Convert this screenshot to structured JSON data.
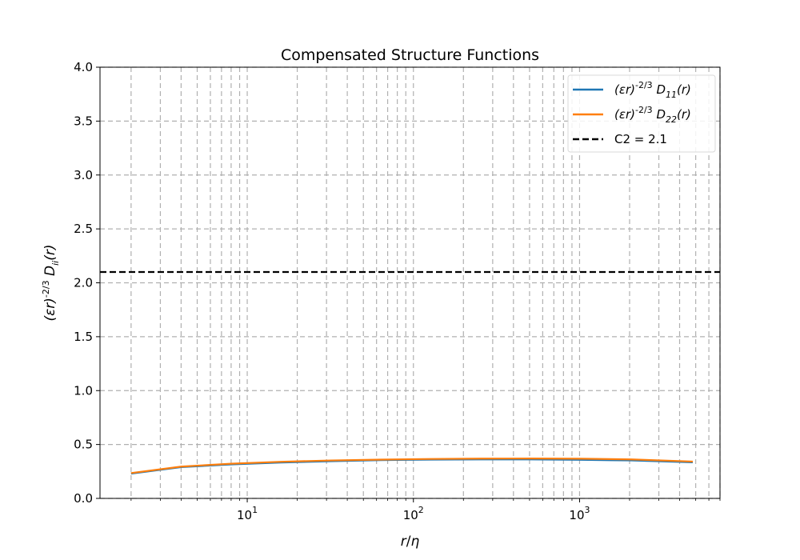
{
  "chart_data": {
    "type": "line",
    "title": "Compensated Structure Functions",
    "xlabel": "r/η",
    "ylabel": "(εr)^{-2/3} D_ii(r)",
    "xscale": "log",
    "xlim": [
      1.3,
      7000
    ],
    "ylim": [
      0.0,
      4.0
    ],
    "grid": true,
    "legend_position": "upper-right",
    "x_tick_labels": [
      "10^1",
      "10^2",
      "10^3"
    ],
    "y_tick_labels": [
      "0.0",
      "0.5",
      "1.0",
      "1.5",
      "2.0",
      "2.5",
      "3.0",
      "3.5",
      "4.0"
    ],
    "x": [
      2,
      4,
      8,
      16,
      32,
      64,
      128,
      256,
      512,
      1024,
      2048,
      4800
    ],
    "series": [
      {
        "name": "(εr)^{-2/3} D_11(r)",
        "color": "#1f77b4",
        "values": [
          0.23,
          0.29,
          0.315,
          0.333,
          0.345,
          0.355,
          0.36,
          0.362,
          0.362,
          0.358,
          0.352,
          0.335
        ]
      },
      {
        "name": "(εr)^{-2/3} D_22(r)",
        "color": "#ff7f0e",
        "values": [
          0.235,
          0.295,
          0.322,
          0.34,
          0.352,
          0.36,
          0.366,
          0.369,
          0.37,
          0.368,
          0.362,
          0.342
        ]
      }
    ],
    "reference_lines": [
      {
        "name": "C2 = 2.1",
        "value": 2.1,
        "color": "#000000",
        "style": "dashed"
      }
    ]
  }
}
